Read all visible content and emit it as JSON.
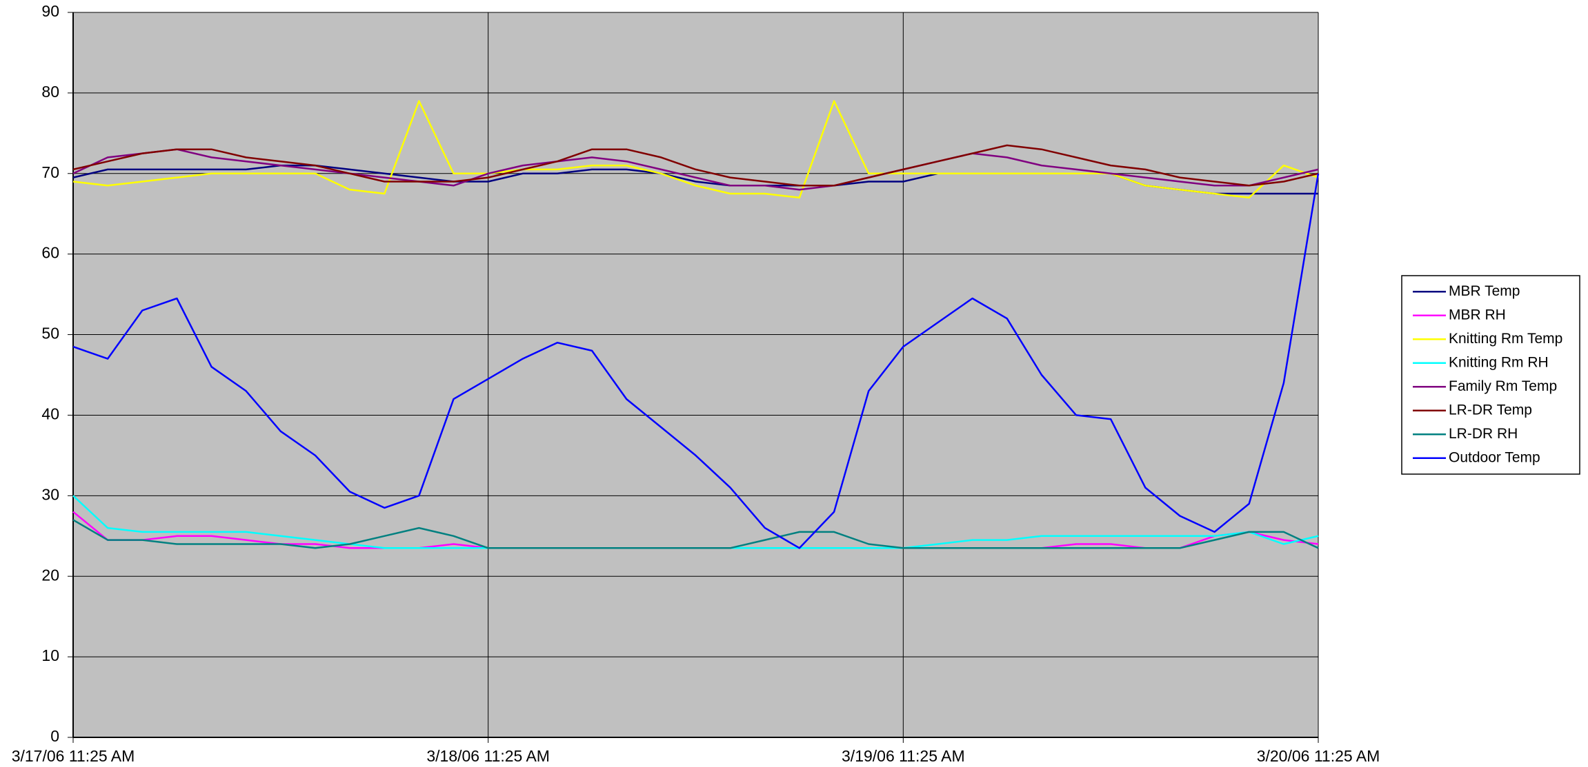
{
  "chart_data": {
    "type": "line",
    "categories": [
      "3/17/06 11:25 AM",
      null,
      null,
      null,
      null,
      null,
      null,
      null,
      null,
      null,
      null,
      null,
      "3/18/06 11:25 AM",
      null,
      null,
      null,
      null,
      null,
      null,
      null,
      null,
      null,
      null,
      null,
      "3/19/06 11:25 AM",
      null,
      null,
      null,
      null,
      null,
      null,
      null,
      null,
      null,
      null,
      null,
      "3/20/06 11:25 AM"
    ],
    "series": [
      {
        "name": "MBR Temp",
        "color": "#000080",
        "values": [
          69.5,
          70.5,
          70.5,
          70.5,
          70.5,
          70.5,
          71,
          71,
          70.5,
          70,
          69.5,
          69,
          69,
          70,
          70,
          70.5,
          70.5,
          70,
          69,
          68.5,
          68.5,
          68.5,
          68.5,
          69,
          69,
          70,
          70,
          70,
          70,
          70,
          70,
          68.5,
          68,
          67.5,
          67.5,
          67.5,
          67.5
        ]
      },
      {
        "name": "MBR RH",
        "color": "#ff00ff",
        "values": [
          28,
          24.5,
          24.5,
          25,
          25,
          24.5,
          24,
          24,
          23.5,
          23.5,
          23.5,
          24,
          23.5,
          23.5,
          23.5,
          23.5,
          23.5,
          23.5,
          23.5,
          23.5,
          23.5,
          23.5,
          23.5,
          23.5,
          23.5,
          23.5,
          23.5,
          23.5,
          23.5,
          24,
          24,
          23.5,
          23.5,
          25,
          25.5,
          24.5,
          24
        ]
      },
      {
        "name": "Knitting Rm Temp",
        "color": "#ffff00",
        "values": [
          69,
          68.5,
          69,
          69.5,
          70,
          70,
          70,
          70,
          68,
          67.5,
          79,
          70,
          70,
          70.5,
          70.5,
          71,
          71,
          70,
          68.5,
          67.5,
          67.5,
          67,
          79,
          70,
          70,
          70,
          70,
          70,
          70,
          70,
          70,
          68.5,
          68,
          67.5,
          67,
          71,
          69.5
        ]
      },
      {
        "name": "Knitting Rm RH",
        "color": "#00ffff",
        "values": [
          30,
          26,
          25.5,
          25.5,
          25.5,
          25.5,
          25,
          24.5,
          24,
          23.5,
          23.5,
          23.5,
          23.5,
          23.5,
          23.5,
          23.5,
          23.5,
          23.5,
          23.5,
          23.5,
          23.5,
          23.5,
          23.5,
          23.5,
          23.5,
          24,
          24.5,
          24.5,
          25,
          25,
          25,
          25,
          25,
          25,
          25.5,
          24,
          25
        ]
      },
      {
        "name": "Family Rm Temp",
        "color": "#800080",
        "values": [
          70,
          72,
          72.5,
          73,
          72,
          71.5,
          71,
          70.5,
          70,
          69.5,
          69,
          68.5,
          70,
          71,
          71.5,
          72,
          71.5,
          70.5,
          69.5,
          68.5,
          68.5,
          68,
          68.5,
          69.5,
          70.5,
          71.5,
          72.5,
          72,
          71,
          70.5,
          70,
          69.5,
          69,
          68.5,
          68.5,
          69.5,
          70.5
        ]
      },
      {
        "name": "LR-DR Temp",
        "color": "#800000",
        "values": [
          70.5,
          71.5,
          72.5,
          73,
          73,
          72,
          71.5,
          71,
          70,
          69,
          69,
          69,
          69.5,
          70.5,
          71.5,
          73,
          73,
          72,
          70.5,
          69.5,
          69,
          68.5,
          68.5,
          69.5,
          70.5,
          71.5,
          72.5,
          73.5,
          73,
          72,
          71,
          70.5,
          69.5,
          69,
          68.5,
          69,
          70
        ]
      },
      {
        "name": "LR-DR RH",
        "color": "#008080",
        "values": [
          27,
          24.5,
          24.5,
          24,
          24,
          24,
          24,
          23.5,
          24,
          25,
          26,
          25,
          23.5,
          23.5,
          23.5,
          23.5,
          23.5,
          23.5,
          23.5,
          23.5,
          24.5,
          25.5,
          25.5,
          24,
          23.5,
          23.5,
          23.5,
          23.5,
          23.5,
          23.5,
          23.5,
          23.5,
          23.5,
          24.5,
          25.5,
          25.5,
          23.5
        ]
      },
      {
        "name": "Outdoor Temp",
        "color": "#0000ff",
        "values": [
          48.5,
          47,
          53,
          54.5,
          46,
          43,
          38,
          35,
          30.5,
          28.5,
          30,
          42,
          44.5,
          47,
          49,
          48,
          42,
          38.5,
          35,
          31,
          26,
          23.5,
          28,
          43,
          48.5,
          51.5,
          54.5,
          52,
          45,
          40,
          39.5,
          31,
          27.5,
          25.5,
          29,
          44,
          70
        ]
      }
    ],
    "ylim": [
      0,
      90
    ],
    "yticks": [
      0,
      10,
      20,
      30,
      40,
      50,
      60,
      70,
      80,
      90
    ],
    "grid": true,
    "legend": "right",
    "background": "#c0c0c0"
  }
}
